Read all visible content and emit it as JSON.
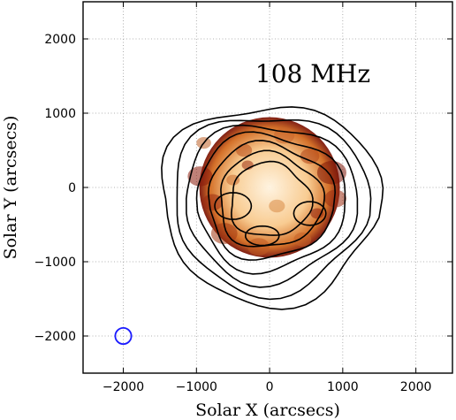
{
  "chart_data": {
    "type": "contour",
    "annotation": "108 MHz",
    "xlabel": "Solar X (arcsecs)",
    "ylabel": "Solar Y (arcsecs)",
    "xlim": [
      -2550,
      2500
    ],
    "ylim": [
      -2500,
      2500
    ],
    "x_ticks": [
      -2000,
      -1000,
      0,
      1000,
      2000
    ],
    "y_ticks": [
      -2000,
      -1000,
      0,
      1000,
      2000
    ],
    "x_tick_labels": [
      "−2000",
      "−1000",
      "0",
      "1000",
      "2000"
    ],
    "y_tick_labels": [
      "−2000",
      "−1000",
      "0",
      "1000",
      "2000"
    ],
    "grid": true,
    "background_image": {
      "type": "euv-disk-heatmap",
      "center": [
        0,
        0
      ],
      "radius": 960,
      "colormap": "orange-to-dark-red"
    },
    "contour_levels": 7,
    "contour_color": "#000000",
    "beam": {
      "center": [
        -2000,
        -2000
      ],
      "radius": 110,
      "color": "#1a1aff"
    }
  }
}
